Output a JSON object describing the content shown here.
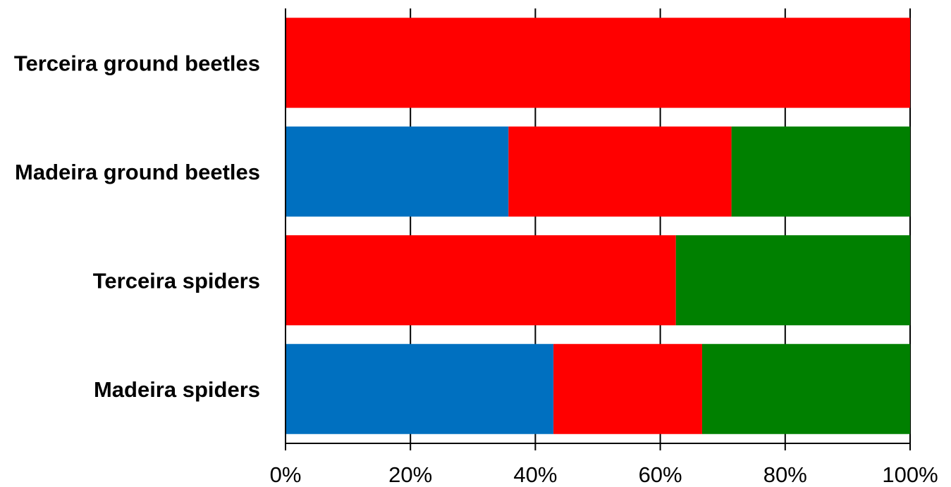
{
  "chart_data": {
    "type": "bar",
    "orientation": "horizontal",
    "stacked": true,
    "categories": [
      "Terceira ground beetles",
      "Madeira ground beetles",
      "Terceira spiders",
      "Madeira spiders"
    ],
    "series": [
      {
        "color": "#0070c0",
        "values": [
          0,
          35.7,
          0,
          42.9
        ]
      },
      {
        "color": "#ff0000",
        "values": [
          100,
          35.7,
          62.5,
          23.8
        ]
      },
      {
        "color": "#008000",
        "values": [
          0,
          28.6,
          37.5,
          33.3
        ]
      }
    ],
    "xlim": [
      0,
      100
    ],
    "x_ticks": [
      "0%",
      "20%",
      "40%",
      "60%",
      "80%",
      "100%"
    ],
    "grid": true,
    "legend": "none",
    "title": "",
    "xlabel": "",
    "ylabel": ""
  }
}
